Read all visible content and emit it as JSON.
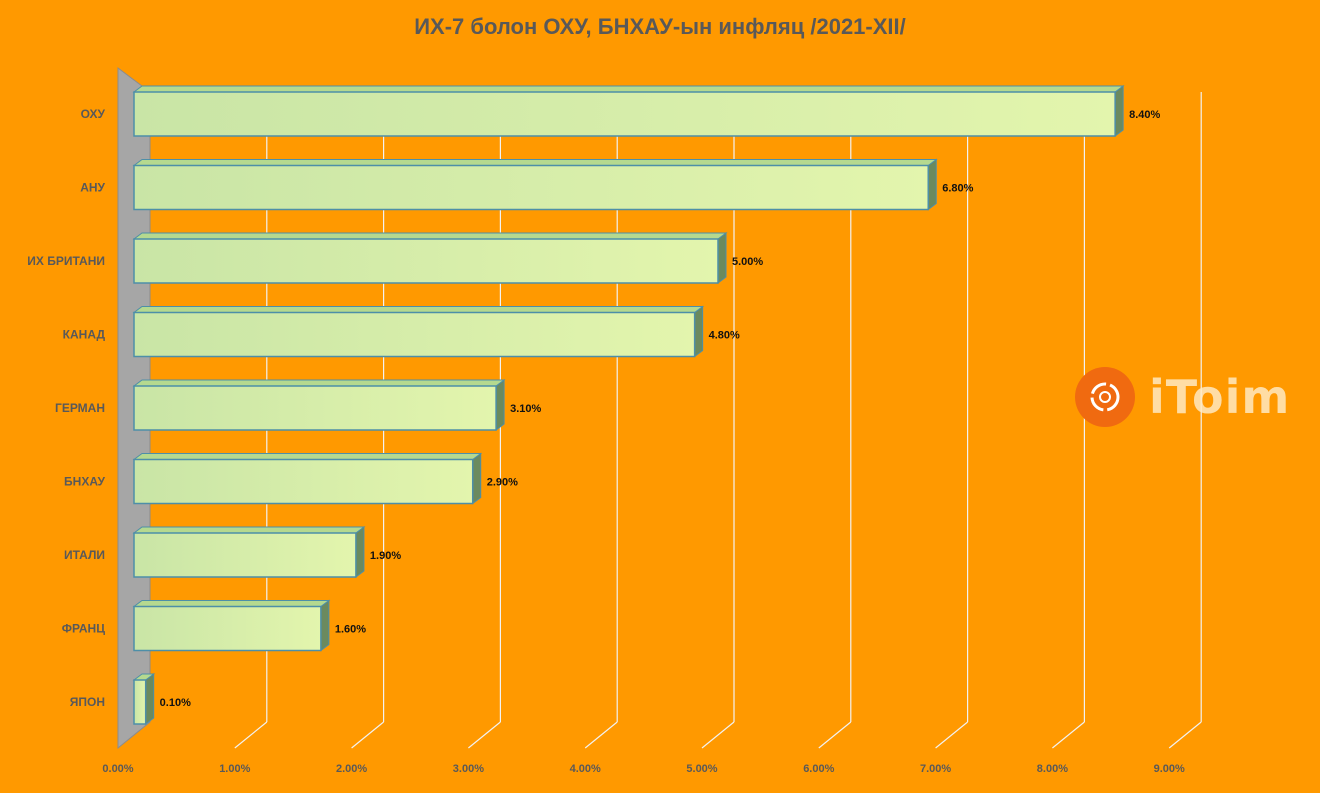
{
  "chart_data": {
    "type": "bar",
    "orientation": "horizontal",
    "title": "ИХ-7 болон ОХУ, БНХАУ-ын инфляц /2021-XII/",
    "categories": [
      "ОХУ",
      "АНУ",
      "ИХ БРИТАНИ",
      "КАНАД",
      "ГЕРМАН",
      "БНХАУ",
      "ИТАЛИ",
      "ФРАНЦ",
      "ЯПОН"
    ],
    "values": [
      8.4,
      6.8,
      5.0,
      4.8,
      3.1,
      2.9,
      1.9,
      1.6,
      0.1
    ],
    "data_labels": [
      "8.40%",
      "6.80%",
      "5.00%",
      "4.80%",
      "3.10%",
      "2.90%",
      "1.90%",
      "1.60%",
      "0.10%"
    ],
    "x_ticks": [
      "0.00%",
      "1.00%",
      "2.00%",
      "3.00%",
      "4.00%",
      "5.00%",
      "6.00%",
      "7.00%",
      "8.00%",
      "9.00%"
    ],
    "xlim": [
      0,
      9
    ],
    "xlabel": "",
    "ylabel": "",
    "grid": true,
    "legend": "none",
    "style": "3d",
    "colors": {
      "background": "#FF9900",
      "bar_front": "#C9E5A6",
      "bar_front_light": "#E3F5AD",
      "bar_edge": "#4D8FA8",
      "bar_side": "#6B8A5E",
      "wall": "#A6A6A6",
      "grid": "#F2F2F2"
    }
  },
  "watermark": {
    "text": "iToim",
    "icon": "itoim-logo-icon"
  }
}
